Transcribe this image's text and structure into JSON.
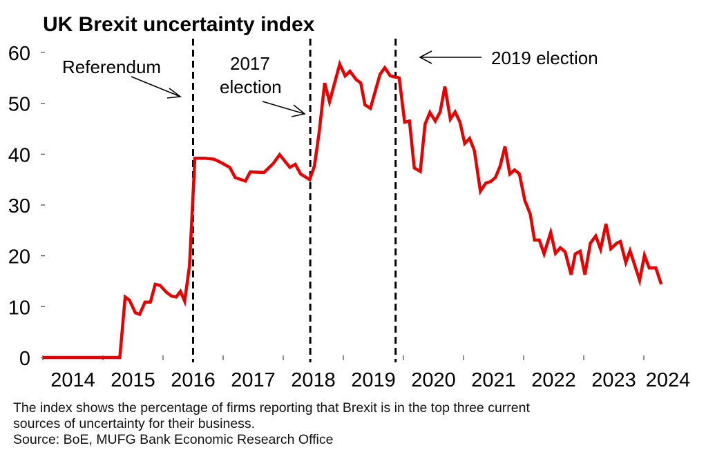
{
  "chart_data": {
    "type": "line",
    "title": "UK Brexit uncertainty index",
    "xlabel": "",
    "ylabel": "",
    "ylim": [
      0,
      60
    ],
    "xlim": [
      2014,
      2025
    ],
    "yticks": [
      0,
      10,
      20,
      30,
      40,
      50,
      60
    ],
    "yticklabels": [
      "0",
      "10",
      "20",
      "30",
      "40",
      "50",
      "60"
    ],
    "xticks": [
      2014,
      2015,
      2016,
      2017,
      2018,
      2019,
      2020,
      2021,
      2022,
      2023,
      2024
    ],
    "xticklabels": [
      "2014",
      "2015",
      "2016",
      "2017",
      "2018",
      "2019",
      "2020",
      "2021",
      "2022",
      "2023",
      "2024"
    ],
    "grid": false,
    "legend": "none",
    "series": [
      {
        "name": "Brexit uncertainty index",
        "color": "#e60000",
        "points": [
          [
            2014.0,
            0
          ],
          [
            2015.28,
            0
          ],
          [
            2015.37,
            11.9
          ],
          [
            2015.44,
            11.3
          ],
          [
            2015.54,
            8.8
          ],
          [
            2015.61,
            8.5
          ],
          [
            2015.7,
            10.9
          ],
          [
            2015.79,
            10.9
          ],
          [
            2015.87,
            14.4
          ],
          [
            2015.95,
            14.2
          ],
          [
            2016.05,
            12.9
          ],
          [
            2016.14,
            12.1
          ],
          [
            2016.22,
            11.9
          ],
          [
            2016.29,
            13.0
          ],
          [
            2016.36,
            11.1
          ],
          [
            2016.44,
            18.0
          ],
          [
            2016.53,
            39.2
          ],
          [
            2016.69,
            39.2
          ],
          [
            2016.85,
            39.0
          ],
          [
            2016.94,
            38.5
          ],
          [
            2017.11,
            37.4
          ],
          [
            2017.2,
            35.4
          ],
          [
            2017.37,
            34.7
          ],
          [
            2017.45,
            36.5
          ],
          [
            2017.68,
            36.4
          ],
          [
            2017.83,
            38.1
          ],
          [
            2017.94,
            39.9
          ],
          [
            2018.11,
            37.4
          ],
          [
            2018.2,
            38.0
          ],
          [
            2018.29,
            36.1
          ],
          [
            2018.44,
            35.0
          ],
          [
            2018.52,
            37.7
          ],
          [
            2018.6,
            44.5
          ],
          [
            2018.69,
            54.0
          ],
          [
            2018.77,
            50.3
          ],
          [
            2018.94,
            57.7
          ],
          [
            2019.03,
            55.4
          ],
          [
            2019.11,
            56.3
          ],
          [
            2019.21,
            54.7
          ],
          [
            2019.29,
            54.0
          ],
          [
            2019.36,
            49.7
          ],
          [
            2019.45,
            49.0
          ],
          [
            2019.61,
            55.7
          ],
          [
            2019.69,
            57.0
          ],
          [
            2019.78,
            55.4
          ],
          [
            2019.93,
            55.0
          ],
          [
            2020.02,
            46.3
          ],
          [
            2020.1,
            46.5
          ],
          [
            2020.18,
            37.3
          ],
          [
            2020.28,
            36.6
          ],
          [
            2020.36,
            45.9
          ],
          [
            2020.44,
            48.2
          ],
          [
            2020.53,
            46.5
          ],
          [
            2020.61,
            48.3
          ],
          [
            2020.69,
            53.3
          ],
          [
            2020.78,
            46.9
          ],
          [
            2020.86,
            48.3
          ],
          [
            2020.94,
            46.3
          ],
          [
            2021.02,
            42.1
          ],
          [
            2021.1,
            43.1
          ],
          [
            2021.18,
            40.7
          ],
          [
            2021.28,
            32.7
          ],
          [
            2021.37,
            34.3
          ],
          [
            2021.45,
            34.6
          ],
          [
            2021.53,
            35.4
          ],
          [
            2021.61,
            37.7
          ],
          [
            2021.69,
            41.5
          ],
          [
            2021.77,
            36.1
          ],
          [
            2021.85,
            36.9
          ],
          [
            2021.93,
            36.1
          ],
          [
            2022.02,
            30.9
          ],
          [
            2022.11,
            28.2
          ],
          [
            2022.18,
            23.1
          ],
          [
            2022.26,
            23.1
          ],
          [
            2022.34,
            20.4
          ],
          [
            2022.45,
            24.6
          ],
          [
            2022.53,
            20.5
          ],
          [
            2022.61,
            21.6
          ],
          [
            2022.69,
            20.8
          ],
          [
            2022.79,
            16.3
          ],
          [
            2022.86,
            20.4
          ],
          [
            2022.94,
            20.9
          ],
          [
            2023.02,
            16.3
          ],
          [
            2023.11,
            22.5
          ],
          [
            2023.2,
            23.9
          ],
          [
            2023.28,
            21.3
          ],
          [
            2023.37,
            26.3
          ],
          [
            2023.45,
            21.4
          ],
          [
            2023.55,
            22.5
          ],
          [
            2023.61,
            22.8
          ],
          [
            2023.7,
            18.7
          ],
          [
            2023.77,
            21.0
          ],
          [
            2023.93,
            15.2
          ],
          [
            2024.01,
            20.1
          ],
          [
            2024.09,
            17.6
          ],
          [
            2024.2,
            17.6
          ],
          [
            2024.29,
            14.4
          ]
        ]
      }
    ],
    "vlines": [
      {
        "name": "referendum",
        "x": 2016.5
      },
      {
        "name": "2017-election",
        "x": 2018.45
      },
      {
        "name": "2019-election",
        "x": 2019.87
      }
    ],
    "annotations": [
      {
        "name": "referendum",
        "lines": [
          "Referendum"
        ],
        "points_to": 2016.5
      },
      {
        "name": "2017-election",
        "lines": [
          "2017",
          "election"
        ],
        "points_to": 2018.45
      },
      {
        "name": "2019-election",
        "lines": [
          "2019 election"
        ],
        "points_to": 2019.87
      }
    ]
  },
  "notes": {
    "line1": "The index shows the percentage of firms reporting that Brexit is in the top three current",
    "line2": "sources of uncertainty for their business.",
    "source": "Source: BoE, MUFG Bank Economic Research Office"
  }
}
